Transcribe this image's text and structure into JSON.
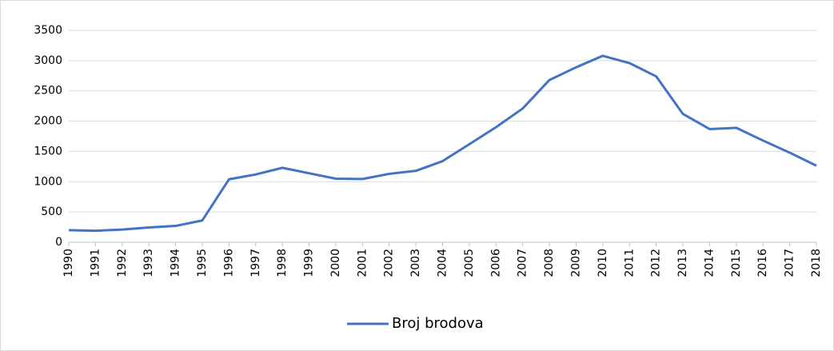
{
  "chart_data": {
    "type": "line",
    "categories": [
      "1990",
      "1991",
      "1992",
      "1993",
      "1994",
      "1995",
      "1996",
      "1997",
      "1998",
      "1999",
      "2000",
      "2001",
      "2002",
      "2003",
      "2004",
      "2005",
      "2006",
      "2007",
      "2008",
      "2009",
      "2010",
      "2011",
      "2012",
      "2013",
      "2014",
      "2015",
      "2016",
      "2017",
      "2018"
    ],
    "series": [
      {
        "name": "Broj brodova",
        "color": "#4472c4",
        "values": [
          200,
          190,
          210,
          245,
          270,
          360,
          1040,
          1120,
          1230,
          1140,
          1050,
          1045,
          1130,
          1180,
          1340,
          1620,
          1900,
          2210,
          2680,
          2890,
          3080,
          2960,
          2740,
          2120,
          1870,
          1890,
          1680,
          1480,
          1265
        ]
      }
    ],
    "ylim": [
      0,
      3500
    ],
    "yticks": [
      0,
      500,
      1000,
      1500,
      2000,
      2500,
      3000,
      3500
    ],
    "grid": true,
    "legend": "bottom"
  }
}
